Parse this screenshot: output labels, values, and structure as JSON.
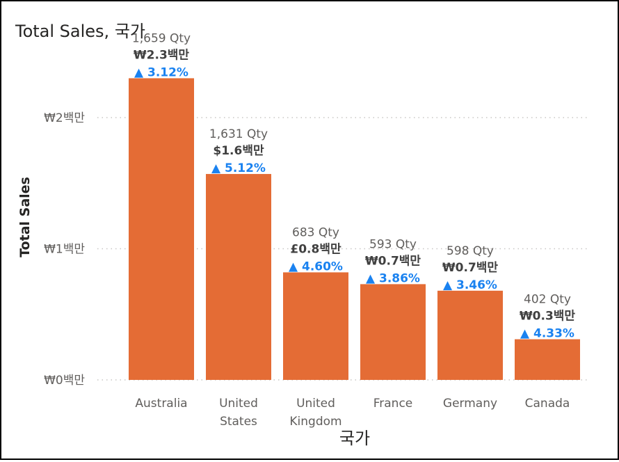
{
  "chart_data": {
    "type": "bar",
    "title": "Total Sales, 국가",
    "xlabel": "국가",
    "ylabel": "Total Sales",
    "ylim": [
      0,
      2.3
    ],
    "yticks": [
      {
        "value": 0,
        "label": "₩0백만"
      },
      {
        "value": 1,
        "label": "₩1백만"
      },
      {
        "value": 2,
        "label": "₩2백만"
      }
    ],
    "grid": "horizontal dotted",
    "categories": [
      [
        "Australia"
      ],
      [
        "United",
        "States"
      ],
      [
        "United",
        "Kingdom"
      ],
      [
        "France"
      ],
      [
        "Germany"
      ],
      [
        "Canada"
      ]
    ],
    "values": [
      2.3,
      1.57,
      0.82,
      0.73,
      0.68,
      0.31
    ],
    "qty_labels": [
      "1,659 Qty",
      "1,631 Qty",
      "683 Qty",
      "593 Qty",
      "598 Qty",
      "402 Qty"
    ],
    "sales_labels": [
      "₩2.3백만",
      "$1.6백만",
      "£0.8백만",
      "₩0.7백만",
      "₩0.7백만",
      "₩0.3백만"
    ],
    "growth_labels": [
      "▲ 3.12%",
      "▲ 5.12%",
      "▲ 4.60%",
      "▲ 3.86%",
      "▲ 3.46%",
      "▲ 4.33%"
    ],
    "bar_color": "#e46c35",
    "growth_color": "#1a82f0"
  }
}
